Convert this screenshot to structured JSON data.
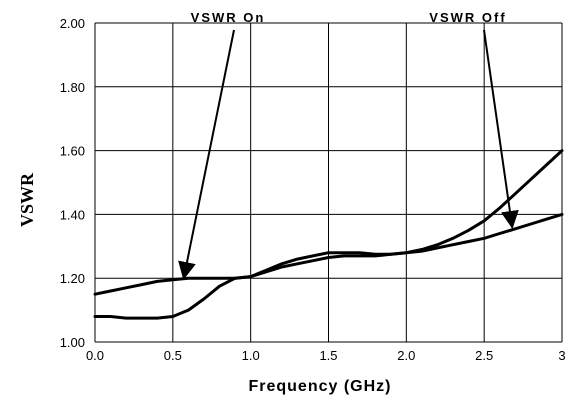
{
  "chart_data": {
    "type": "line",
    "title": "",
    "xlabel": "Frequency (GHz)",
    "ylabel": "VSWR",
    "xlim": [
      0,
      3
    ],
    "ylim": [
      1.0,
      2.0
    ],
    "xticks": [
      0,
      0.5,
      1,
      1.5,
      2,
      2.5,
      3
    ],
    "xtick_labels": [
      "0.0",
      "0.5",
      "1.0",
      "1.5",
      "2.0",
      "2.5",
      "3"
    ],
    "yticks": [
      1.0,
      1.2,
      1.4,
      1.6,
      1.8,
      2.0
    ],
    "ytick_labels": [
      "1.00",
      "1.20",
      "1.40",
      "1.60",
      "1.80",
      "2.00"
    ],
    "grid": true,
    "series": [
      {
        "name": "VSWR On",
        "x": [
          0,
          0.1,
          0.2,
          0.3,
          0.4,
          0.5,
          0.6,
          0.7,
          0.8,
          0.9,
          1.0,
          1.1,
          1.2,
          1.3,
          1.4,
          1.5,
          1.6,
          1.7,
          1.8,
          1.9,
          2.0,
          2.1,
          2.2,
          2.3,
          2.4,
          2.5,
          2.6,
          2.7,
          2.8,
          2.9,
          3.0
        ],
        "y": [
          1.15,
          1.16,
          1.17,
          1.18,
          1.19,
          1.195,
          1.2,
          1.2,
          1.2,
          1.2,
          1.205,
          1.22,
          1.235,
          1.245,
          1.255,
          1.265,
          1.27,
          1.27,
          1.27,
          1.275,
          1.28,
          1.285,
          1.295,
          1.305,
          1.315,
          1.325,
          1.34,
          1.355,
          1.37,
          1.385,
          1.4
        ]
      },
      {
        "name": "VSWR Off",
        "x": [
          0,
          0.1,
          0.2,
          0.3,
          0.4,
          0.5,
          0.6,
          0.7,
          0.8,
          0.9,
          1.0,
          1.1,
          1.2,
          1.3,
          1.4,
          1.5,
          1.6,
          1.7,
          1.8,
          1.9,
          2.0,
          2.1,
          2.2,
          2.3,
          2.4,
          2.5,
          2.6,
          2.7,
          2.8,
          2.9,
          3.0
        ],
        "y": [
          1.08,
          1.08,
          1.075,
          1.075,
          1.075,
          1.08,
          1.1,
          1.135,
          1.175,
          1.2,
          1.205,
          1.225,
          1.245,
          1.26,
          1.27,
          1.28,
          1.28,
          1.28,
          1.275,
          1.275,
          1.28,
          1.29,
          1.305,
          1.325,
          1.35,
          1.38,
          1.42,
          1.465,
          1.51,
          1.555,
          1.6
        ]
      }
    ],
    "annotations": [
      {
        "text": "VSWR On",
        "points_to": {
          "x": 0.57,
          "y": 1.2
        }
      },
      {
        "text": "VSWR Off",
        "points_to": {
          "x": 2.68,
          "y": 1.36
        }
      }
    ]
  }
}
